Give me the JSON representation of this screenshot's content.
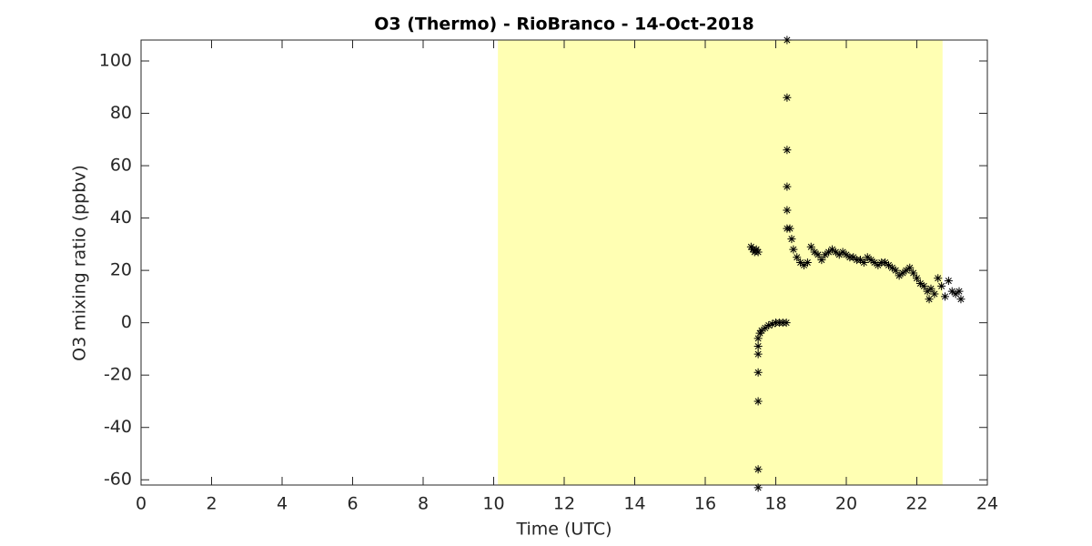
{
  "chart_data": {
    "type": "scatter",
    "title": "O3 (Thermo) - RioBranco - 14-Oct-2018",
    "x_label": "Time (UTC)",
    "y_label": "O3 mixing ratio (ppbv)",
    "xlim": [
      0,
      24
    ],
    "ylim": [
      -62,
      108
    ],
    "xticks": [
      0,
      2,
      4,
      6,
      8,
      10,
      12,
      14,
      16,
      18,
      20,
      22,
      24
    ],
    "yticks": [
      -60,
      -40,
      -20,
      0,
      20,
      40,
      60,
      80,
      100
    ],
    "shaded_region": [
      10.12,
      22.73
    ],
    "shaded_color": "#ffffb3",
    "color": "#000000",
    "marker": "asterisk",
    "x": [
      17.3,
      17.35,
      17.4,
      17.45,
      17.5,
      17.5,
      17.5,
      17.5,
      17.5,
      17.5,
      17.5,
      17.5,
      17.55,
      17.6,
      17.7,
      17.8,
      17.9,
      18.0,
      18.1,
      18.2,
      18.3,
      18.32,
      18.32,
      18.32,
      18.32,
      18.32,
      18.32,
      18.4,
      18.45,
      18.5,
      18.6,
      18.7,
      18.8,
      18.9,
      19.0,
      19.1,
      19.2,
      19.3,
      19.4,
      19.5,
      19.6,
      19.7,
      19.8,
      19.9,
      20.0,
      20.1,
      20.2,
      20.3,
      20.4,
      20.5,
      20.6,
      20.7,
      20.8,
      20.9,
      21.0,
      21.1,
      21.2,
      21.3,
      21.4,
      21.5,
      21.6,
      21.7,
      21.8,
      21.9,
      22.0,
      22.1,
      22.2,
      22.3,
      22.35,
      22.4,
      22.5,
      22.6,
      22.7,
      22.8,
      22.9,
      23.0,
      23.1,
      23.2,
      23.25
    ],
    "y": [
      29,
      28,
      27,
      28,
      27,
      -63,
      -56,
      -30,
      -19,
      -12,
      -9,
      -6,
      -4,
      -3,
      -2,
      -1,
      -0.5,
      0,
      0,
      0,
      0,
      108,
      86,
      66,
      52,
      43,
      36,
      36,
      32,
      28,
      25,
      23,
      22,
      23,
      29,
      27,
      26,
      24,
      26,
      27,
      28,
      27,
      26,
      27,
      26,
      25,
      25,
      24,
      24,
      23,
      25,
      24,
      23,
      22,
      23,
      23,
      22,
      21,
      20,
      18,
      19,
      20,
      21,
      19,
      17,
      15,
      14,
      12,
      9,
      13,
      11,
      17,
      14,
      10,
      16,
      12,
      11,
      12,
      9
    ]
  }
}
